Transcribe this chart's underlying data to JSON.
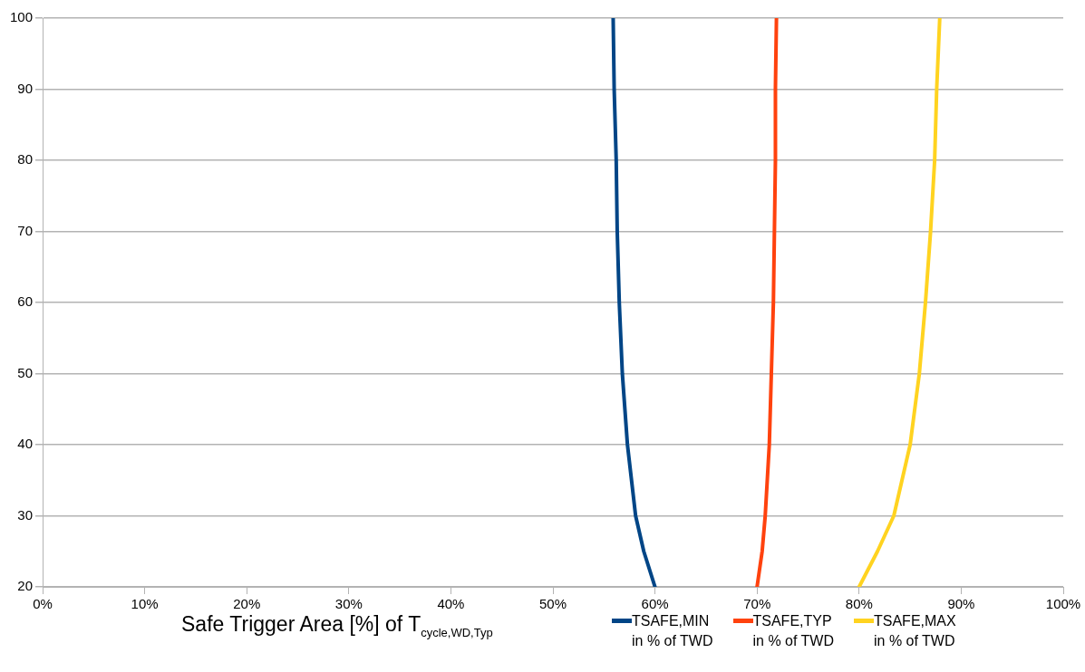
{
  "chart_data": {
    "type": "line",
    "xlabel": "Safe Trigger Area [%] of T$_{cycle,WD,Typ}$",
    "xlim": [
      0,
      100
    ],
    "xticks": [
      {
        "value": 0,
        "label": "0%"
      },
      {
        "value": 10,
        "label": "10%"
      },
      {
        "value": 20,
        "label": "20%"
      },
      {
        "value": 30,
        "label": "30%"
      },
      {
        "value": 40,
        "label": "40%"
      },
      {
        "value": 50,
        "label": "50%"
      },
      {
        "value": 60,
        "label": "60%"
      },
      {
        "value": 70,
        "label": "70%"
      },
      {
        "value": 80,
        "label": "80%"
      },
      {
        "value": 90,
        "label": "90%"
      },
      {
        "value": 100,
        "label": "100%"
      }
    ],
    "ylim": [
      20,
      100
    ],
    "yticks": [
      20,
      30,
      40,
      50,
      60,
      70,
      80,
      90,
      100
    ],
    "grid": "y",
    "legend": "bottom",
    "marker": "none",
    "line_style": "solid",
    "series": [
      {
        "name": "TSAFE,MIN\nin % of TWD",
        "color": "#004586",
        "x": [
          60,
          58.9,
          58.1,
          57.3,
          56.8,
          56.5,
          56.3,
          56.2,
          56.0,
          55.9
        ],
        "values": [
          20,
          25,
          30,
          40,
          50,
          60,
          70,
          80,
          90,
          100
        ]
      },
      {
        "name": "TSAFE,TYP\nin % of TWD",
        "color": "#ff420e",
        "x": [
          70,
          70.5,
          70.8,
          71.2,
          71.4,
          71.6,
          71.7,
          71.8,
          71.8,
          71.9
        ],
        "values": [
          20,
          25,
          30,
          40,
          50,
          60,
          70,
          80,
          90,
          100
        ]
      },
      {
        "name": "TSAFE,MAX\nin % of TWD",
        "color": "#ffd320",
        "x": [
          80,
          81.8,
          83.4,
          85.0,
          85.9,
          86.5,
          87.0,
          87.4,
          87.6,
          87.9
        ],
        "values": [
          20,
          25,
          30,
          40,
          50,
          60,
          70,
          80,
          90,
          100
        ]
      }
    ]
  }
}
